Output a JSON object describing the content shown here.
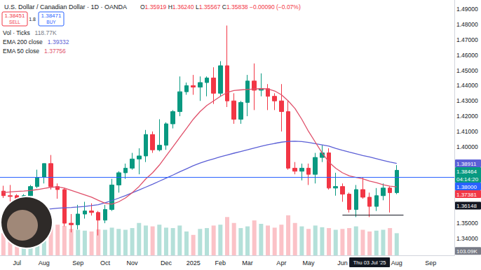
{
  "chart_data": {
    "type": "candlestick",
    "title": "U.S. Dollar / Canadian Dollar · 1D · OANDA",
    "header": {
      "ohlc": "O1.35919 H1.36240 L1.35567 C1.35838 −0.00090 (−0.07%)",
      "sell": {
        "price": "1.38451",
        "label": "SELL"
      },
      "spread": "1.8",
      "buy": {
        "price": "1.38471",
        "label": "BUY"
      },
      "legend_rows": [
        {
          "series": "Vol · Ticks",
          "value": "118.77K"
        },
        {
          "series": "EMA 200 close",
          "value": "1.39332"
        },
        {
          "series": "EMA 50 close",
          "value": "1.37756"
        }
      ]
    },
    "categories": [
      null,
      null,
      "Jul",
      null,
      null,
      null,
      "Aug",
      null,
      null,
      null,
      null,
      "Sep",
      null,
      null,
      null,
      "Oct",
      null,
      null,
      null,
      "Nov",
      null,
      null,
      null,
      null,
      "Dec",
      null,
      null,
      null,
      "2025",
      null,
      null,
      null,
      "Feb",
      null,
      null,
      null,
      "Mar",
      null,
      null,
      null,
      null,
      "Apr",
      null,
      null,
      null,
      "May",
      null,
      null,
      null,
      null,
      "Jun",
      null,
      null,
      null,
      null,
      null,
      null,
      null,
      "Aug",
      null,
      null,
      null,
      null,
      "Sep",
      null,
      null,
      null
    ],
    "ylim": [
      1.329,
      1.496
    ],
    "yticks": [
      {
        "value": 1.34,
        "label": "1.34000"
      },
      {
        "value": 1.35,
        "label": "1.35000"
      },
      {
        "value": 1.4,
        "label": "1.40000"
      },
      {
        "value": 1.41,
        "label": "1.41000"
      },
      {
        "value": 1.42,
        "label": "1.42000"
      },
      {
        "value": 1.43,
        "label": "1.43000"
      },
      {
        "value": 1.44,
        "label": "1.44000"
      },
      {
        "value": 1.45,
        "label": "1.45000"
      },
      {
        "value": 1.46,
        "label": "1.46000"
      },
      {
        "value": 1.47,
        "label": "1.47000"
      },
      {
        "value": 1.48,
        "label": "1.48000"
      },
      {
        "value": 1.49,
        "label": "1.49000"
      }
    ],
    "y2lim": [
      0,
      6000000
    ],
    "tick_labels": true,
    "grid": false,
    "series": [
      {
        "type": "candlestick",
        "values": [
          [
            1.371,
            1.3745,
            1.3665,
            1.368
          ],
          [
            1.368,
            1.375,
            1.363,
            1.3675
          ],
          [
            1.368,
            1.369,
            1.359,
            1.364
          ],
          [
            1.364,
            1.369,
            1.36,
            1.368
          ],
          [
            1.368,
            1.375,
            1.365,
            1.374
          ],
          [
            1.374,
            1.385,
            1.373,
            1.38
          ],
          [
            1.38,
            1.389,
            1.376,
            1.389
          ],
          [
            1.389,
            1.3946,
            1.372,
            1.374
          ],
          [
            1.374,
            1.376,
            1.366,
            1.372
          ],
          [
            1.372,
            1.373,
            1.348,
            1.35
          ],
          [
            1.35,
            1.356,
            1.344,
            1.349
          ],
          [
            1.349,
            1.362,
            1.346,
            1.356
          ],
          [
            1.356,
            1.364,
            1.353,
            1.358
          ],
          [
            1.358,
            1.363,
            1.355,
            1.357
          ],
          [
            1.357,
            1.358,
            1.342,
            1.352
          ],
          [
            1.352,
            1.362,
            1.35,
            1.359
          ],
          [
            1.359,
            1.379,
            1.358,
            1.375
          ],
          [
            1.375,
            1.384,
            1.37,
            1.383
          ],
          [
            1.383,
            1.389,
            1.379,
            1.386
          ],
          [
            1.386,
            1.396,
            1.385,
            1.392
          ],
          [
            1.392,
            1.399,
            1.382,
            1.394
          ],
          [
            1.394,
            1.411,
            1.39,
            1.408
          ],
          [
            1.408,
            1.41,
            1.396,
            1.398
          ],
          [
            1.398,
            1.418,
            1.397,
            1.401
          ],
          [
            1.401,
            1.416,
            1.398,
            1.415
          ],
          [
            1.415,
            1.424,
            1.412,
            1.423
          ],
          [
            1.423,
            1.446,
            1.42,
            1.436
          ],
          [
            1.436,
            1.442,
            1.434,
            1.44
          ],
          [
            1.44,
            1.447,
            1.434,
            1.439
          ],
          [
            1.439,
            1.446,
            1.43,
            1.442
          ],
          [
            1.442,
            1.446,
            1.433,
            1.445
          ],
          [
            1.445,
            1.452,
            1.428,
            1.435
          ],
          [
            1.435,
            1.456,
            1.433,
            1.453
          ],
          [
            1.453,
            1.4793,
            1.426,
            1.43
          ],
          [
            1.43,
            1.435,
            1.415,
            1.418
          ],
          [
            1.418,
            1.43,
            1.415,
            1.429
          ],
          [
            1.429,
            1.447,
            1.42,
            1.443
          ],
          [
            1.443,
            1.4545,
            1.424,
            1.437
          ],
          [
            1.437,
            1.448,
            1.433,
            1.438
          ],
          [
            1.438,
            1.441,
            1.424,
            1.433
          ],
          [
            1.433,
            1.435,
            1.424,
            1.43
          ],
          [
            1.43,
            1.441,
            1.41,
            1.423
          ],
          [
            1.423,
            1.43,
            1.385,
            1.386
          ],
          [
            1.386,
            1.39,
            1.382,
            1.384
          ],
          [
            1.384,
            1.389,
            1.378,
            1.386
          ],
          [
            1.386,
            1.389,
            1.375,
            1.382
          ],
          [
            1.382,
            1.396,
            1.376,
            1.393
          ],
          [
            1.393,
            1.401,
            1.39,
            1.396
          ],
          [
            1.396,
            1.399,
            1.372,
            1.373
          ],
          [
            1.373,
            1.383,
            1.368,
            1.374
          ],
          [
            1.374,
            1.376,
            1.364,
            1.369
          ],
          [
            1.369,
            1.37,
            1.357,
            1.359
          ],
          [
            1.359,
            1.375,
            1.354,
            1.372
          ],
          [
            1.372,
            1.38,
            1.366,
            1.367
          ],
          [
            1.367,
            1.37,
            1.354,
            1.361
          ],
          [
            1.361,
            1.373,
            1.358,
            1.368
          ],
          [
            1.368,
            1.376,
            1.365,
            1.373
          ],
          [
            1.373,
            1.374,
            1.357,
            1.37
          ],
          [
            1.37,
            1.388,
            1.369,
            1.3846
          ],
          null,
          null,
          null,
          null,
          null,
          null,
          null,
          null
        ]
      },
      {
        "name": "Vol · Ticks",
        "type": "bar",
        "axis": "y2",
        "color": "#787b86",
        "values": [
          520000,
          560000,
          610000,
          580000,
          600000,
          640000,
          700000,
          880000,
          720000,
          690000,
          620000,
          600000,
          580000,
          560000,
          610000,
          600000,
          650000,
          620000,
          600000,
          640000,
          760000,
          700000,
          680000,
          720000,
          650000,
          640000,
          700000,
          560000,
          480000,
          620000,
          640000,
          700000,
          720000,
          900000,
          760000,
          640000,
          680000,
          820000,
          740000,
          700000,
          650000,
          720000,
          940000,
          760000,
          680000,
          620000,
          700000,
          660000,
          640000,
          600000,
          620000,
          640000,
          680000,
          600000,
          560000,
          580000,
          600000,
          640000,
          520000,
          null,
          null,
          null,
          null,
          null,
          null,
          null,
          null
        ]
      },
      {
        "name": "EMA 200 close",
        "type": "line",
        "color": "#5b5fd6",
        "values": [
          1.357,
          1.3572,
          1.3575,
          1.3578,
          1.3581,
          1.3585,
          1.3589,
          1.3594,
          1.3598,
          1.3601,
          1.3603,
          1.3606,
          1.361,
          1.3615,
          1.3621,
          1.3634,
          1.3648,
          1.3664,
          1.3681,
          1.3699,
          1.3717,
          1.3736,
          1.3755,
          1.3775,
          1.3795,
          1.3815,
          1.3836,
          1.3856,
          1.3876,
          1.3893,
          1.3908,
          1.3921,
          1.3934,
          1.3946,
          1.3958,
          1.3969,
          1.398,
          1.3992,
          1.4003,
          1.4013,
          1.4022,
          1.403,
          1.4035,
          1.4036,
          1.4034,
          1.4028,
          1.402,
          1.4012,
          1.4004,
          1.399,
          1.3977,
          1.3965,
          1.3954,
          1.3943,
          1.3933,
          1.3922,
          1.3911,
          1.39,
          1.3891,
          null,
          null,
          null,
          null,
          null,
          null,
          null,
          null
        ]
      },
      {
        "name": "EMA 50 close",
        "type": "line",
        "color": "#e0506a",
        "values": [
          1.37,
          1.3705,
          1.3708,
          1.371,
          1.3714,
          1.372,
          1.3728,
          1.3735,
          1.3738,
          1.373,
          1.3715,
          1.37,
          1.3685,
          1.367,
          1.365,
          1.363,
          1.3625,
          1.364,
          1.3665,
          1.37,
          1.374,
          1.379,
          1.383,
          1.388,
          1.394,
          1.4,
          1.406,
          1.412,
          1.418,
          1.423,
          1.427,
          1.43,
          1.433,
          1.4355,
          1.4368,
          1.4372,
          1.4375,
          1.4378,
          1.438,
          1.4378,
          1.4365,
          1.434,
          1.43,
          1.425,
          1.418,
          1.41,
          1.403,
          1.396,
          1.39,
          1.386,
          1.383,
          1.381,
          1.38,
          1.379,
          1.3776,
          1.3765,
          1.3752,
          1.3742,
          1.3738,
          null,
          null,
          null,
          null,
          null,
          null,
          null,
          null
        ]
      }
    ],
    "lines": [
      {
        "value": 1.38,
        "color": "#2962ff"
      },
      {
        "value": 1.3555,
        "color": "#131722",
        "from": 50,
        "to": 59
      }
    ],
    "price_tags": [
      {
        "label": "1.38911",
        "value": 1.38911,
        "color": "#5b5fd6"
      },
      {
        "label": "1.38464",
        "value": 1.38464,
        "color": "#089981",
        "sublabel": "04:14:20"
      },
      {
        "label": "1.38000",
        "value": 1.38,
        "color": "#2962ff"
      },
      {
        "label": "1.37381",
        "value": 1.37381,
        "color": "#f23645"
      },
      {
        "label": "1.36148",
        "value": 1.36148,
        "color": "#131722"
      },
      {
        "label": "103.09K",
        "value": 103090,
        "axis": "y2",
        "color": "#787b86"
      }
    ],
    "crosshair": {
      "label": "Thu 03 Jul '25",
      "index": 54
    }
  }
}
